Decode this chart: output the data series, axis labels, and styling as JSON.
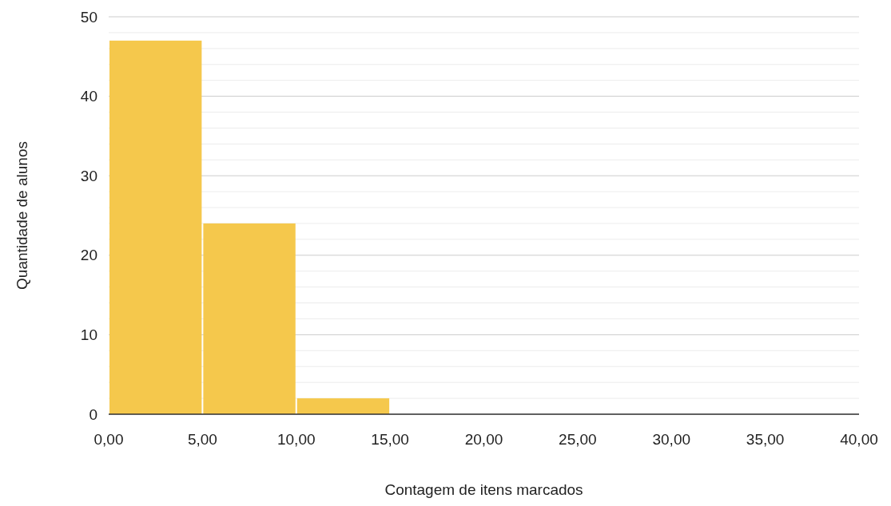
{
  "chart_data": {
    "type": "histogram",
    "xlabel": "Contagem de itens marcados",
    "ylabel": "Quantidade de alunos",
    "bins": [
      0,
      5,
      10,
      15,
      20,
      25,
      30,
      35,
      40
    ],
    "values": [
      47,
      24,
      2,
      0,
      0,
      0,
      0,
      0
    ],
    "color": "#f5c84c",
    "xlim": [
      0,
      40
    ],
    "xticks": [
      {
        "value": 0,
        "label": "0,00"
      },
      {
        "value": 5,
        "label": "5,00"
      },
      {
        "value": 10,
        "label": "10,00"
      },
      {
        "value": 15,
        "label": "15,00"
      },
      {
        "value": 20,
        "label": "20,00"
      },
      {
        "value": 25,
        "label": "25,00"
      },
      {
        "value": 30,
        "label": "30,00"
      },
      {
        "value": 35,
        "label": "35,00"
      },
      {
        "value": 40,
        "label": "40,00"
      }
    ],
    "ylim": [
      0,
      50
    ],
    "yticks": [
      0,
      {
        "value": 2,
        "label": null
      },
      {
        "value": 4,
        "label": null
      },
      {
        "value": 6,
        "label": null
      },
      {
        "value": 8,
        "label": null
      },
      10,
      {
        "value": 12,
        "label": null
      },
      {
        "value": 14,
        "label": null
      },
      {
        "value": 16,
        "label": null
      },
      {
        "value": 18,
        "label": null
      },
      20,
      {
        "value": 22,
        "label": null
      },
      {
        "value": 24,
        "label": null
      },
      {
        "value": 26,
        "label": null
      },
      {
        "value": 28,
        "label": null
      },
      30,
      {
        "value": 32,
        "label": null
      },
      {
        "value": 34,
        "label": null
      },
      {
        "value": 36,
        "label": null
      },
      {
        "value": 38,
        "label": null
      },
      40,
      {
        "value": 42,
        "label": null
      },
      {
        "value": 44,
        "label": null
      },
      {
        "value": 46,
        "label": null
      },
      {
        "value": 48,
        "label": null
      },
      50
    ],
    "grid": "y"
  }
}
